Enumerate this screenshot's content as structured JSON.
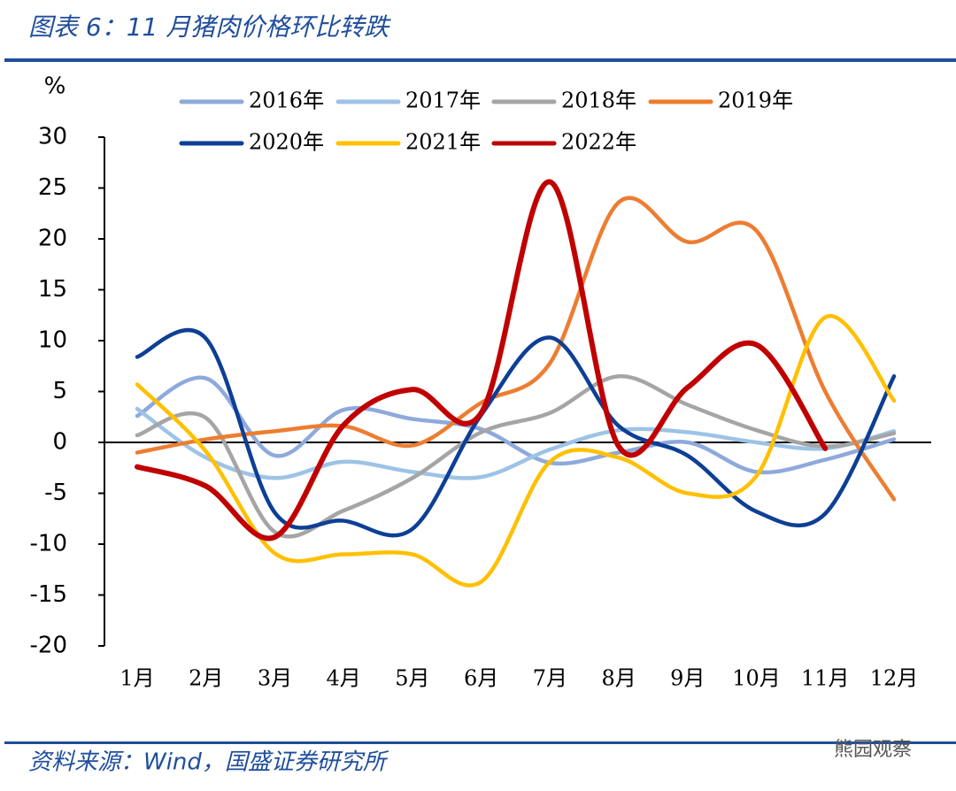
{
  "chart_data": {
    "type": "line",
    "title": "图表 6：11 月猪肉价格环比转跌",
    "source": "资料来源：Wind，国盛证券研究所",
    "watermark": "熊园观察",
    "y_label": "%",
    "categories": [
      "1月",
      "2月",
      "3月",
      "4月",
      "5月",
      "6月",
      "7月",
      "8月",
      "9月",
      "10月",
      "11月",
      "12月"
    ],
    "ylim": [
      -20,
      30
    ],
    "yticks": [
      -20,
      -15,
      -10,
      -5,
      0,
      5,
      10,
      15,
      20,
      25,
      30
    ],
    "smooth": true,
    "series": [
      {
        "name": "2016年",
        "color": "#8EA9DB",
        "values": [
          2.6,
          6.3,
          -1.3,
          3.2,
          2.3,
          1.3,
          -2.0,
          -1.0,
          0,
          -2.9,
          -1.7,
          0.3
        ]
      },
      {
        "name": "2017年",
        "color": "#9DC3E6",
        "values": [
          3.3,
          -1.5,
          -3.5,
          -1.9,
          -2.9,
          -3.4,
          -0.7,
          1.2,
          1.0,
          0,
          -0.6,
          1.1
        ]
      },
      {
        "name": "2018年",
        "color": "#A5A5A5",
        "values": [
          0.7,
          2.4,
          -8.8,
          -6.7,
          -3.5,
          1.0,
          2.9,
          6.5,
          3.7,
          1.2,
          -0.4,
          0.9
        ]
      },
      {
        "name": "2019年",
        "color": "#ED7D31",
        "values": [
          -1.0,
          0.3,
          1.1,
          1.6,
          -0.3,
          3.9,
          7.8,
          23.6,
          19.7,
          20.8,
          5.0,
          -5.6
        ]
      },
      {
        "name": "2020年",
        "color": "#0D3F95",
        "values": [
          8.4,
          10.2,
          -6.9,
          -7.7,
          -8.5,
          2.7,
          10.3,
          1.6,
          -1.3,
          -6.8,
          -7.0,
          6.5
        ]
      },
      {
        "name": "2021年",
        "color": "#FFC000",
        "values": [
          5.7,
          -0.9,
          -10.9,
          -11.0,
          -11.0,
          -13.7,
          -1.9,
          -1.5,
          -5.0,
          -3.3,
          12.3,
          4.1
        ]
      },
      {
        "name": "2022年",
        "color": "#C00000",
        "values": [
          -2.4,
          -4.3,
          -9.3,
          1.7,
          5.2,
          2.9,
          25.6,
          -0.4,
          5.4,
          9.6,
          -0.6,
          null
        ]
      }
    ]
  }
}
